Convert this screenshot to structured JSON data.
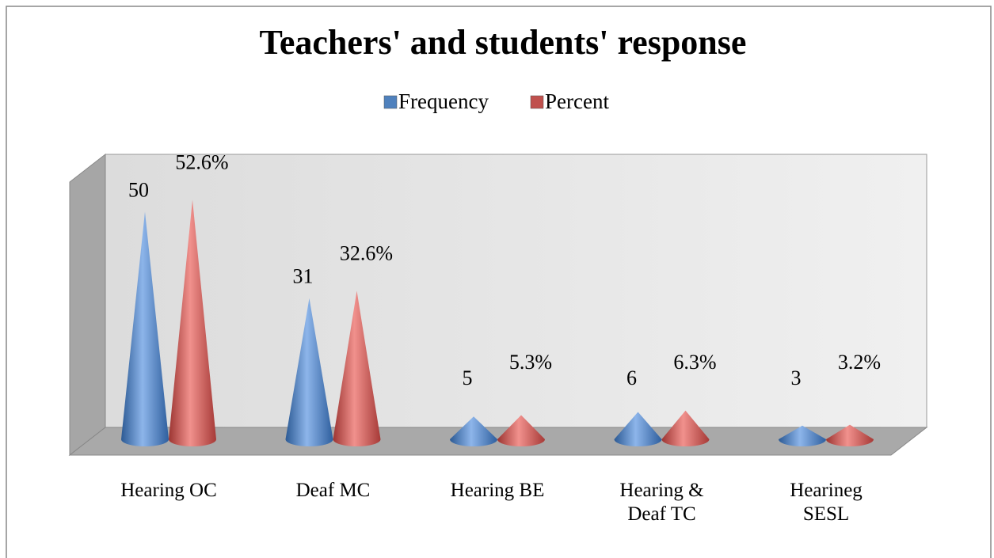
{
  "chart_data": {
    "type": "cone3d",
    "title": "Teachers' and students' response",
    "categories": [
      "Hearing OC",
      "Deaf MC",
      "Hearing BE",
      "Hearing &\nDeaf TC",
      "Hearineg\nSESL"
    ],
    "series": [
      {
        "name": "Frequency",
        "color": "#4f81bd",
        "values": [
          50,
          31,
          5,
          6,
          3
        ]
      },
      {
        "name": "Percent",
        "color": "#c0504d",
        "values": [
          52.6,
          32.6,
          5.3,
          6.3,
          3.2
        ],
        "value_labels": [
          "52.6%",
          "32.6%",
          "5.3%",
          "6.3%",
          "3.2%"
        ]
      }
    ],
    "ylim": [
      0,
      60
    ],
    "legend": "top"
  }
}
